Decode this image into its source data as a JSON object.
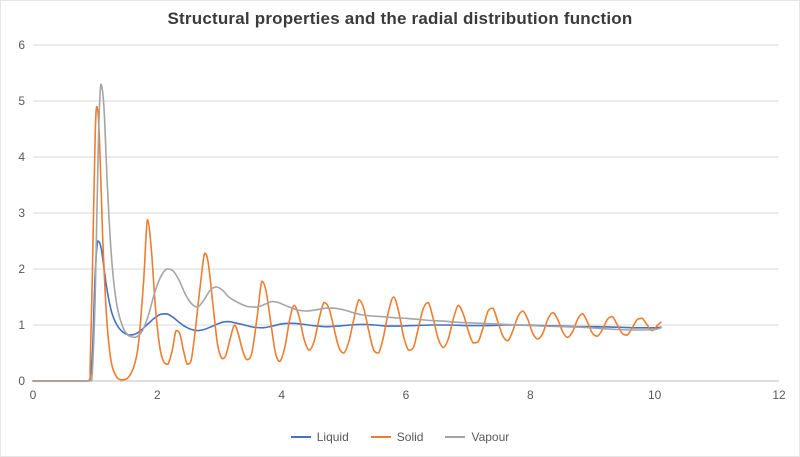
{
  "chart_data": {
    "type": "line",
    "title": "Structural properties and the radial distribution function",
    "xlabel": "",
    "ylabel": "",
    "xlim": [
      0,
      12
    ],
    "ylim": [
      0,
      6
    ],
    "xticks": [
      0,
      2,
      4,
      6,
      8,
      10,
      12
    ],
    "yticks": [
      0,
      1,
      2,
      3,
      4,
      5,
      6
    ],
    "grid": "horizontal",
    "legend_position": "bottom",
    "series": [
      {
        "name": "Liquid",
        "color": "#4472C4",
        "points": [
          [
            0,
            0
          ],
          [
            0.5,
            0
          ],
          [
            0.88,
            0
          ],
          [
            0.92,
            0.05
          ],
          [
            0.96,
            0.6
          ],
          [
            1.0,
            1.9
          ],
          [
            1.04,
            2.5
          ],
          [
            1.1,
            2.35
          ],
          [
            1.18,
            1.7
          ],
          [
            1.26,
            1.25
          ],
          [
            1.35,
            1.0
          ],
          [
            1.45,
            0.87
          ],
          [
            1.55,
            0.82
          ],
          [
            1.65,
            0.84
          ],
          [
            1.75,
            0.92
          ],
          [
            1.85,
            1.02
          ],
          [
            1.95,
            1.12
          ],
          [
            2.05,
            1.19
          ],
          [
            2.15,
            1.2
          ],
          [
            2.25,
            1.14
          ],
          [
            2.35,
            1.05
          ],
          [
            2.45,
            0.97
          ],
          [
            2.55,
            0.92
          ],
          [
            2.65,
            0.9
          ],
          [
            2.75,
            0.92
          ],
          [
            2.85,
            0.96
          ],
          [
            2.95,
            1.01
          ],
          [
            3.05,
            1.05
          ],
          [
            3.15,
            1.06
          ],
          [
            3.25,
            1.04
          ],
          [
            3.4,
            1.0
          ],
          [
            3.55,
            0.96
          ],
          [
            3.7,
            0.95
          ],
          [
            3.85,
            0.98
          ],
          [
            4.0,
            1.02
          ],
          [
            4.15,
            1.03
          ],
          [
            4.3,
            1.02
          ],
          [
            4.5,
            0.99
          ],
          [
            4.7,
            0.97
          ],
          [
            4.9,
            0.98
          ],
          [
            5.1,
            1.0
          ],
          [
            5.3,
            1.01
          ],
          [
            5.5,
            1.0
          ],
          [
            5.7,
            0.98
          ],
          [
            5.9,
            0.98
          ],
          [
            6.1,
            0.99
          ],
          [
            6.4,
            1.0
          ],
          [
            6.7,
            1.0
          ],
          [
            7.0,
            0.99
          ],
          [
            7.3,
            0.99
          ],
          [
            7.6,
            1.0
          ],
          [
            7.9,
            1.0
          ],
          [
            8.2,
            0.99
          ],
          [
            8.5,
            0.98
          ],
          [
            8.8,
            0.97
          ],
          [
            9.1,
            0.97
          ],
          [
            9.4,
            0.96
          ],
          [
            9.7,
            0.95
          ],
          [
            10.0,
            0.95
          ],
          [
            10.1,
            0.96
          ]
        ]
      },
      {
        "name": "Solid",
        "color": "#ED7D31",
        "points": [
          [
            0,
            0
          ],
          [
            0.5,
            0
          ],
          [
            0.88,
            0
          ],
          [
            0.92,
            0.3
          ],
          [
            0.96,
            2.2
          ],
          [
            1.0,
            4.4
          ],
          [
            1.03,
            4.9
          ],
          [
            1.07,
            4.3
          ],
          [
            1.12,
            2.6
          ],
          [
            1.18,
            1.2
          ],
          [
            1.25,
            0.4
          ],
          [
            1.33,
            0.1
          ],
          [
            1.42,
            0.02
          ],
          [
            1.52,
            0.05
          ],
          [
            1.62,
            0.25
          ],
          [
            1.7,
            0.7
          ],
          [
            1.78,
            1.8
          ],
          [
            1.84,
            2.88
          ],
          [
            1.9,
            2.4
          ],
          [
            1.97,
            1.3
          ],
          [
            2.04,
            0.6
          ],
          [
            2.1,
            0.35
          ],
          [
            2.17,
            0.3
          ],
          [
            2.24,
            0.55
          ],
          [
            2.3,
            0.9
          ],
          [
            2.36,
            0.85
          ],
          [
            2.42,
            0.55
          ],
          [
            2.48,
            0.3
          ],
          [
            2.54,
            0.35
          ],
          [
            2.6,
            0.8
          ],
          [
            2.68,
            1.6
          ],
          [
            2.76,
            2.28
          ],
          [
            2.82,
            2.1
          ],
          [
            2.9,
            1.3
          ],
          [
            2.97,
            0.65
          ],
          [
            3.04,
            0.4
          ],
          [
            3.1,
            0.45
          ],
          [
            3.17,
            0.75
          ],
          [
            3.24,
            1.0
          ],
          [
            3.3,
            0.85
          ],
          [
            3.37,
            0.55
          ],
          [
            3.44,
            0.38
          ],
          [
            3.52,
            0.5
          ],
          [
            3.6,
            1.1
          ],
          [
            3.68,
            1.78
          ],
          [
            3.75,
            1.6
          ],
          [
            3.83,
            1.0
          ],
          [
            3.9,
            0.5
          ],
          [
            3.97,
            0.35
          ],
          [
            4.05,
            0.6
          ],
          [
            4.13,
            1.1
          ],
          [
            4.2,
            1.35
          ],
          [
            4.28,
            1.15
          ],
          [
            4.36,
            0.75
          ],
          [
            4.44,
            0.55
          ],
          [
            4.52,
            0.7
          ],
          [
            4.6,
            1.1
          ],
          [
            4.68,
            1.4
          ],
          [
            4.76,
            1.3
          ],
          [
            4.84,
            0.95
          ],
          [
            4.92,
            0.6
          ],
          [
            5.0,
            0.5
          ],
          [
            5.08,
            0.7
          ],
          [
            5.16,
            1.1
          ],
          [
            5.24,
            1.45
          ],
          [
            5.32,
            1.3
          ],
          [
            5.4,
            0.9
          ],
          [
            5.48,
            0.55
          ],
          [
            5.56,
            0.5
          ],
          [
            5.64,
            0.8
          ],
          [
            5.72,
            1.25
          ],
          [
            5.8,
            1.5
          ],
          [
            5.88,
            1.25
          ],
          [
            5.96,
            0.8
          ],
          [
            6.04,
            0.55
          ],
          [
            6.12,
            0.6
          ],
          [
            6.2,
            0.95
          ],
          [
            6.28,
            1.3
          ],
          [
            6.36,
            1.4
          ],
          [
            6.44,
            1.1
          ],
          [
            6.52,
            0.75
          ],
          [
            6.6,
            0.6
          ],
          [
            6.68,
            0.75
          ],
          [
            6.76,
            1.1
          ],
          [
            6.84,
            1.35
          ],
          [
            6.92,
            1.2
          ],
          [
            7.0,
            0.9
          ],
          [
            7.08,
            0.68
          ],
          [
            7.16,
            0.7
          ],
          [
            7.24,
            0.95
          ],
          [
            7.32,
            1.25
          ],
          [
            7.4,
            1.3
          ],
          [
            7.48,
            1.05
          ],
          [
            7.56,
            0.8
          ],
          [
            7.64,
            0.72
          ],
          [
            7.72,
            0.9
          ],
          [
            7.8,
            1.15
          ],
          [
            7.88,
            1.25
          ],
          [
            7.96,
            1.1
          ],
          [
            8.04,
            0.85
          ],
          [
            8.12,
            0.75
          ],
          [
            8.2,
            0.85
          ],
          [
            8.28,
            1.1
          ],
          [
            8.36,
            1.22
          ],
          [
            8.44,
            1.1
          ],
          [
            8.52,
            0.88
          ],
          [
            8.6,
            0.78
          ],
          [
            8.68,
            0.88
          ],
          [
            8.76,
            1.1
          ],
          [
            8.84,
            1.2
          ],
          [
            8.92,
            1.05
          ],
          [
            9.0,
            0.85
          ],
          [
            9.08,
            0.8
          ],
          [
            9.16,
            0.92
          ],
          [
            9.24,
            1.1
          ],
          [
            9.32,
            1.15
          ],
          [
            9.4,
            1.0
          ],
          [
            9.48,
            0.85
          ],
          [
            9.56,
            0.82
          ],
          [
            9.64,
            0.95
          ],
          [
            9.72,
            1.1
          ],
          [
            9.8,
            1.12
          ],
          [
            9.88,
            1.0
          ],
          [
            9.96,
            0.9
          ],
          [
            10.05,
            1.0
          ],
          [
            10.1,
            1.05
          ]
        ]
      },
      {
        "name": "Vapour",
        "color": "#A5A5A5",
        "points": [
          [
            0,
            0
          ],
          [
            0.5,
            0
          ],
          [
            0.9,
            0
          ],
          [
            0.95,
            0.1
          ],
          [
            1.0,
            1.5
          ],
          [
            1.05,
            4.2
          ],
          [
            1.09,
            5.3
          ],
          [
            1.14,
            4.9
          ],
          [
            1.2,
            3.4
          ],
          [
            1.27,
            2.1
          ],
          [
            1.35,
            1.35
          ],
          [
            1.45,
            0.95
          ],
          [
            1.55,
            0.8
          ],
          [
            1.65,
            0.78
          ],
          [
            1.75,
            0.88
          ],
          [
            1.85,
            1.15
          ],
          [
            1.95,
            1.55
          ],
          [
            2.05,
            1.85
          ],
          [
            2.15,
            2.0
          ],
          [
            2.25,
            1.97
          ],
          [
            2.35,
            1.8
          ],
          [
            2.45,
            1.55
          ],
          [
            2.55,
            1.38
          ],
          [
            2.65,
            1.32
          ],
          [
            2.75,
            1.45
          ],
          [
            2.85,
            1.62
          ],
          [
            2.95,
            1.68
          ],
          [
            3.05,
            1.62
          ],
          [
            3.15,
            1.5
          ],
          [
            3.3,
            1.4
          ],
          [
            3.45,
            1.33
          ],
          [
            3.6,
            1.32
          ],
          [
            3.75,
            1.38
          ],
          [
            3.85,
            1.42
          ],
          [
            3.95,
            1.4
          ],
          [
            4.1,
            1.33
          ],
          [
            4.25,
            1.27
          ],
          [
            4.4,
            1.25
          ],
          [
            4.55,
            1.27
          ],
          [
            4.7,
            1.3
          ],
          [
            4.85,
            1.3
          ],
          [
            5.0,
            1.27
          ],
          [
            5.15,
            1.22
          ],
          [
            5.3,
            1.18
          ],
          [
            5.45,
            1.16
          ],
          [
            5.6,
            1.15
          ],
          [
            5.8,
            1.13
          ],
          [
            6.0,
            1.12
          ],
          [
            6.2,
            1.1
          ],
          [
            6.4,
            1.08
          ],
          [
            6.6,
            1.07
          ],
          [
            6.8,
            1.05
          ],
          [
            7.0,
            1.04
          ],
          [
            7.2,
            1.03
          ],
          [
            7.4,
            1.02
          ],
          [
            7.6,
            1.01
          ],
          [
            7.8,
            1.0
          ],
          [
            8.0,
            0.99
          ],
          [
            8.2,
            0.98
          ],
          [
            8.5,
            0.97
          ],
          [
            8.8,
            0.96
          ],
          [
            9.1,
            0.94
          ],
          [
            9.4,
            0.92
          ],
          [
            9.7,
            0.91
          ],
          [
            10.0,
            0.92
          ],
          [
            10.1,
            0.95
          ]
        ]
      }
    ]
  },
  "styles": {
    "grid_color": "#d9d9d9",
    "axis_color": "#bfbfbf",
    "tick_color": "#595959",
    "title_color": "#3b3b3b",
    "background": "#ffffff"
  }
}
